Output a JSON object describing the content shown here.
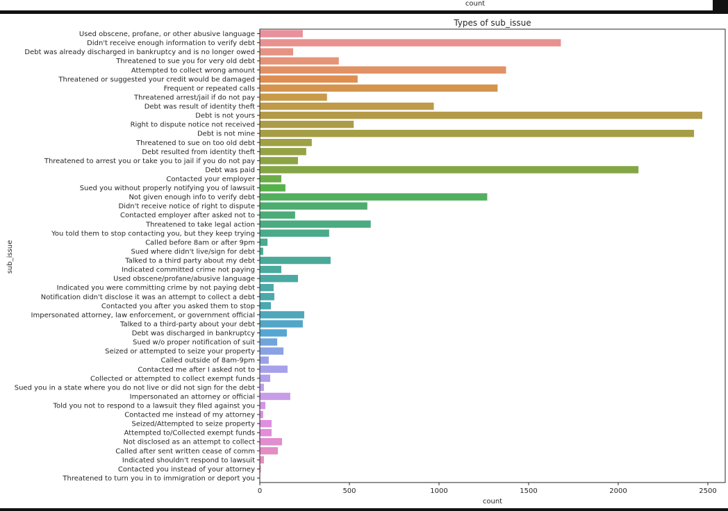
{
  "header": {
    "previous_axis_label": "count"
  },
  "chart_data": {
    "type": "bar",
    "orientation": "horizontal",
    "title": "Types of sub_issue",
    "xlabel": "count",
    "ylabel": "sub_issue",
    "xlim": [
      0,
      2597
    ],
    "xticks": [
      0,
      500,
      1000,
      1500,
      2000,
      2500
    ],
    "grid": false,
    "legend": "none",
    "categories": [
      "Used obscene, profane, or other abusive language",
      "Didn't receive enough information to verify debt",
      "Debt was already discharged in bankruptcy and is no longer owed",
      "Threatened to sue you for very old debt",
      "Attempted to collect wrong amount",
      "Threatened or suggested your credit would be damaged",
      "Frequent or repeated calls",
      "Threatened arrest/jail if do not pay",
      "Debt was result of identity theft",
      "Debt is not yours",
      "Right to dispute notice not received",
      "Debt is not mine",
      "Threatened to sue on too old debt",
      "Debt resulted from identity theft",
      "Threatened to arrest you or take you to jail if you do not pay",
      "Debt was paid",
      "Contacted your employer",
      "Sued you without properly notifying you of lawsuit",
      "Not given enough info to verify debt",
      "Didn't receive notice of right to dispute",
      "Contacted employer after asked not to",
      "Threatened to take legal action",
      "You told them to stop contacting you, but they keep trying",
      "Called before 8am or after 9pm",
      "Sued where didn't live/sign for debt",
      "Talked to a third party about my debt",
      "Indicated committed crime not paying",
      "Used obscene/profane/abusive language",
      "Indicated you were committing crime by not paying debt",
      "Notification didn't disclose it was an attempt to collect a debt",
      "Contacted you after you asked them to stop",
      "Impersonated attorney, law enforcement, or government official",
      "Talked to a third-party about your debt",
      "Debt was discharged in bankruptcy",
      "Sued w/o proper notification of suit",
      "Seized or attempted to seize your property",
      "Called outside of 8am-9pm",
      "Contacted me after I asked not to",
      "Collected or attempted to collect exempt funds",
      "Sued you in a state where you do not live or did not sign for the debt",
      "Impersonated an attorney or official",
      "Told you not to respond to a lawsuit they filed against you",
      "Contacted me instead of my attorney",
      "Seized/Attempted to seize property",
      "Attempted to/Collected exempt funds",
      "Not disclosed as an attempt to collect",
      "Called after sent written cease of comm",
      "Indicated shouldn't respond to lawsuit",
      "Contacted you instead of your attorney",
      "Threatened to turn you in to immigration or deport you"
    ],
    "values": [
      240,
      1680,
      186,
      441,
      1374,
      546,
      1327,
      375,
      971,
      2469,
      524,
      2423,
      290,
      259,
      213,
      2113,
      120,
      143,
      1269,
      600,
      197,
      619,
      387,
      43,
      19,
      395,
      120,
      213,
      77,
      81,
      62,
      248,
      240,
      151,
      97,
      132,
      50,
      155,
      58,
      23,
      170,
      31,
      19,
      66,
      66,
      124,
      101,
      23,
      6,
      1
    ],
    "palette": "husl"
  }
}
